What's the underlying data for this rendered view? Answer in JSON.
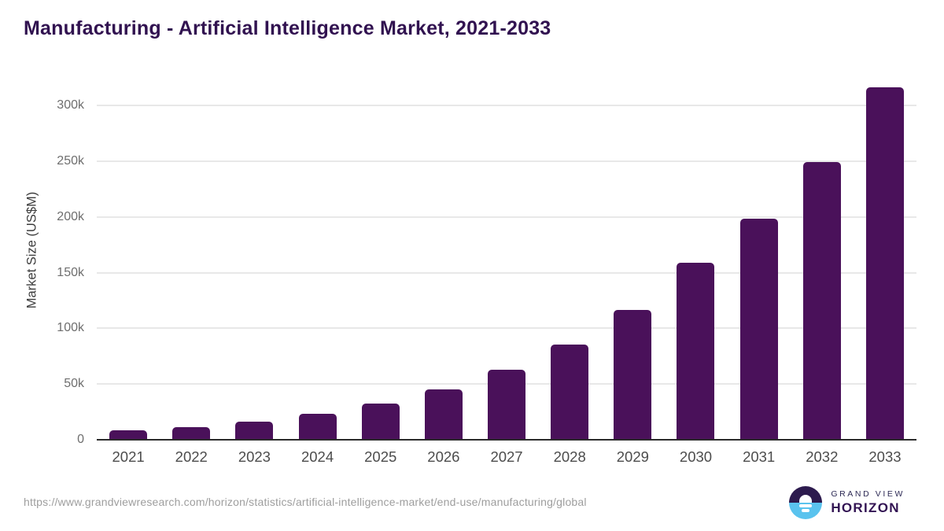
{
  "header": {
    "title": "Manufacturing - Artificial Intelligence Market, 2021-2033"
  },
  "chart_data": {
    "type": "bar",
    "title": "Manufacturing - Artificial Intelligence Market, 2021-2033",
    "categories": [
      "2021",
      "2022",
      "2023",
      "2024",
      "2025",
      "2026",
      "2027",
      "2028",
      "2029",
      "2030",
      "2031",
      "2032",
      "2033"
    ],
    "values": [
      8200,
      11300,
      16000,
      23300,
      32500,
      45000,
      62800,
      85200,
      116500,
      158800,
      198300,
      249200,
      316500
    ],
    "series_name": "Market Size",
    "xlabel": "",
    "ylabel": "Market Size (US$M)",
    "ylim": [
      0,
      300000
    ],
    "yticks": [
      {
        "value": 0,
        "label": "0"
      },
      {
        "value": 50000,
        "label": "50k"
      },
      {
        "value": 100000,
        "label": "100k"
      },
      {
        "value": 150000,
        "label": "150k"
      },
      {
        "value": 200000,
        "label": "200k"
      },
      {
        "value": 250000,
        "label": "250k"
      },
      {
        "value": 300000,
        "label": "300k"
      }
    ],
    "grid": "horizontal",
    "legend": "none",
    "bar_color": "#4a115a"
  },
  "colors": {
    "bar": "#4a115a",
    "title": "#311250",
    "gridline": "#e8e8e8",
    "axis_line": "#2b2b2b",
    "y_tick_label": "#6e6e6e",
    "x_tick_label": "#4c4c4c",
    "source_url": "#9e9e9e",
    "logo_dark_half": "#2d1b4e",
    "logo_blue_half": "#5ac3ee",
    "logo_grand_view_text": "#2d2a55",
    "logo_horizon_text": "#321353"
  },
  "footer": {
    "source_url": "https://www.grandviewresearch.com/horizon/statistics/artificial-intelligence-market/end-use/manufacturing/global",
    "logo": {
      "line1": "GRAND VIEW",
      "line2": "HORIZON"
    }
  }
}
